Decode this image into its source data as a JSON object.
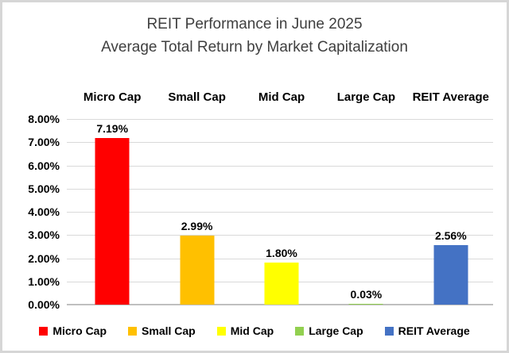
{
  "title": {
    "line1": "REIT Performance in June 2025",
    "line2": "Average Total Return by Market Capitalization"
  },
  "chart_data": {
    "type": "bar",
    "title": "REIT Performance in June 2025 — Average Total Return by Market Capitalization",
    "categories": [
      "Micro Cap",
      "Small Cap",
      "Mid Cap",
      "Large Cap",
      "REIT Average"
    ],
    "values": [
      7.19,
      2.99,
      1.8,
      0.03,
      2.56
    ],
    "value_labels": [
      "7.19%",
      "2.99%",
      "1.80%",
      "0.03%",
      "2.56%"
    ],
    "colors": [
      "#FF0000",
      "#FFC000",
      "#FFFF00",
      "#92D050",
      "#4472C4"
    ],
    "y_ticks": [
      "8.00%",
      "7.00%",
      "6.00%",
      "5.00%",
      "4.00%",
      "3.00%",
      "2.00%",
      "1.00%",
      "0.00%"
    ],
    "ylim": [
      0,
      8
    ],
    "xlabel": "",
    "ylabel": "",
    "grid": true,
    "legend_position": "bottom",
    "legend": [
      "Micro Cap",
      "Small Cap",
      "Mid Cap",
      "Large Cap",
      "REIT Average"
    ]
  },
  "style_colors": {
    "grid_line": "#D9D9D9",
    "axis_line": "#BFBFBF",
    "title_text": "#3F3F3F",
    "label_text": "#000000",
    "border": "#D6D6D6",
    "background": "#FFFFFF"
  }
}
